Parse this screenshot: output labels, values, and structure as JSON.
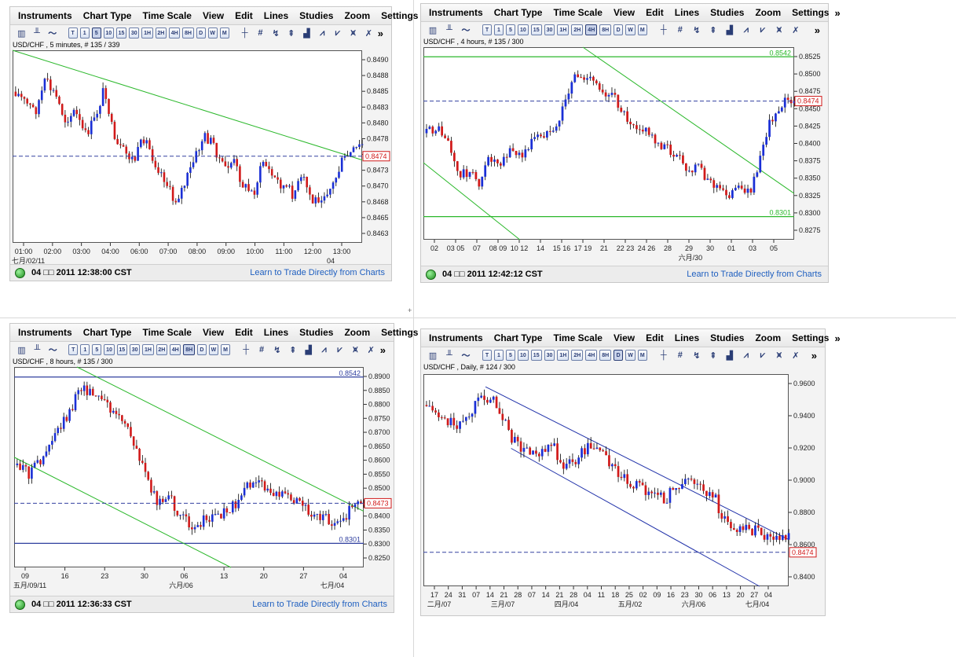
{
  "menu": [
    "Instruments",
    "Chart Type",
    "Time Scale",
    "View",
    "Edit",
    "Lines",
    "Studies",
    "Zoom",
    "Settings"
  ],
  "menu_more": "»",
  "toolbar": {
    "timeframes": [
      "T",
      "1",
      "5",
      "10",
      "15",
      "30",
      "1H",
      "2H",
      "4H",
      "8H",
      "D",
      "W",
      "M"
    ],
    "more": "»"
  },
  "status_link": "Learn to Trade Directly from Charts",
  "divider_marker": "+",
  "colors": {
    "up": "#1a2fd6",
    "down": "#d11a1a",
    "trend": "#2bb82b",
    "channel": "#2233aa",
    "hline": "#2f3f9f",
    "price_box": "#d11a1a"
  },
  "charts": [
    {
      "title": "USD/CHF , 5 minutes, # 135 / 339",
      "selected_tf": "5",
      "timestamp": "04 □□ 2011 12:38:00 CST",
      "price": "0.8474",
      "yticks": [
        "0.8490",
        "0.8488",
        "0.8485",
        "0.8483",
        "0.8480",
        "0.8478",
        "0.8475",
        "0.8473",
        "0.8470",
        "0.8468",
        "0.8465",
        "0.8463"
      ],
      "xticks": [
        "01:00",
        "02:00",
        "03:00",
        "04:00",
        "06:00",
        "07:00",
        "08:00",
        "09:00",
        "10:00",
        "11:00",
        "12:00",
        "13:00"
      ],
      "xsub": [
        "七月/02/11",
        "04"
      ],
      "levels": []
    },
    {
      "title": "USD/CHF , 4 hours, # 135 / 300",
      "selected_tf": "4H",
      "timestamp": "04 □□ 2011 12:42:12 CST",
      "price": "0.8474",
      "yticks": [
        "0.8525",
        "0.8500",
        "0.8475",
        "0.8450",
        "0.8425",
        "0.8400",
        "0.8375",
        "0.8350",
        "0.8325",
        "0.8300",
        "0.8275"
      ],
      "xticks": [
        "02",
        "03 05",
        "07",
        "08 09",
        "10 12",
        "14",
        "15 16",
        "17 19",
        "21",
        "22 23",
        "24 26",
        "28",
        "29",
        "30",
        "01",
        "03",
        "05"
      ],
      "xsub": [
        "六月/30"
      ],
      "levels": [
        "0.8542",
        "0.8301"
      ]
    },
    {
      "title": "USD/CHF , 8 hours, # 135 / 300",
      "selected_tf": "8H",
      "timestamp": "04 □□ 2011 12:36:33 CST",
      "price": "0.8473",
      "yticks": [
        "0.8900",
        "0.8850",
        "0.8800",
        "0.8750",
        "0.8700",
        "0.8650",
        "0.8600",
        "0.8550",
        "0.8500",
        "0.8450",
        "0.8400",
        "0.8350",
        "0.8300",
        "0.8250"
      ],
      "xticks": [
        "09",
        "16",
        "23",
        "30",
        "06",
        "13",
        "20",
        "27",
        "04"
      ],
      "xsub": [
        "五月/09/11",
        "六月/06",
        "七月/04"
      ],
      "levels": [
        "0.8542",
        "0.8301"
      ]
    },
    {
      "title": "USD/CHF , Daily, # 124 / 300",
      "selected_tf": "D",
      "timestamp": "",
      "price": "0.8474",
      "yticks": [
        "0.9600",
        "0.9400",
        "0.9200",
        "0.9000",
        "0.8800",
        "0.8600",
        "0.8400"
      ],
      "xticks": [
        "17",
        "24",
        "31",
        "07",
        "14",
        "21",
        "28",
        "07",
        "14",
        "21",
        "28",
        "04",
        "11",
        "18",
        "25",
        "02",
        "09",
        "16",
        "23",
        "30",
        "06",
        "13",
        "20",
        "27",
        "04"
      ],
      "xsub": [
        "二月/07",
        "三月/07",
        "四月/04",
        "五月/02",
        "六月/06",
        "七月/04"
      ],
      "levels": []
    }
  ]
}
